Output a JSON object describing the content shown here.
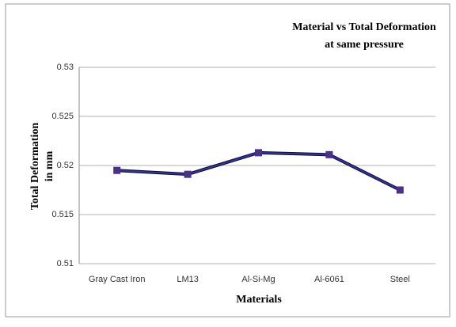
{
  "chart_data": {
    "type": "line",
    "title": [
      "Material vs Total Deformation",
      "at same pressure"
    ],
    "xlabel": "Materials",
    "ylabel": [
      "Total Deformation",
      "in mm"
    ],
    "categories": [
      "Gray Cast Iron",
      "LM13",
      "Al-Si-Mg",
      "Al-6061",
      "Steel"
    ],
    "series": [
      {
        "color": "#3030b8",
        "marker_color": "#55307a",
        "values": [
          0.5195,
          0.5191,
          0.5213,
          0.5211,
          0.5175
        ]
      }
    ],
    "ylim": [
      0.51,
      0.53
    ],
    "yticks": [
      0.51,
      0.515,
      0.52,
      0.525,
      0.53
    ],
    "grid": true
  }
}
